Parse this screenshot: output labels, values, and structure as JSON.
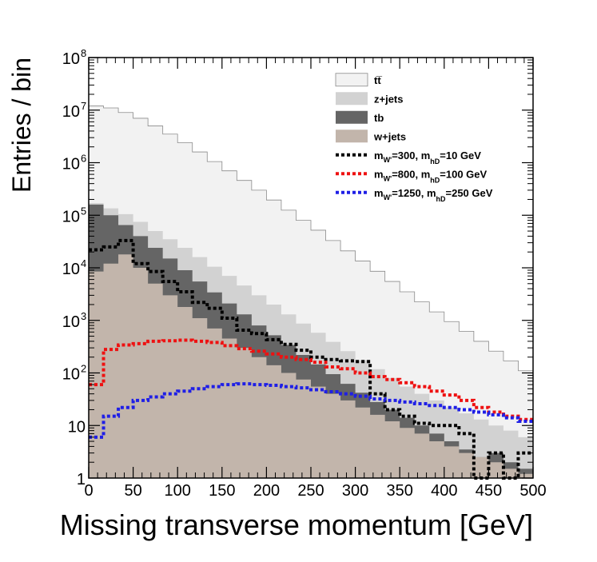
{
  "chart_data": {
    "type": "histogram",
    "title": "",
    "xlabel": "Missing transverse momentum [GeV]",
    "ylabel": "Entries / bin",
    "xlim": [
      0,
      500
    ],
    "ylim": [
      1,
      100000000
    ],
    "log_y": true,
    "grid": false,
    "legend_position": "top-right",
    "bin_width": 16.6667,
    "x_ticks": [
      "0",
      "50",
      "100",
      "150",
      "200",
      "250",
      "300",
      "350",
      "400",
      "450",
      "500"
    ],
    "y_ticks": [
      {
        "base": "1",
        "exp": ""
      },
      {
        "base": "10",
        "exp": ""
      },
      {
        "base": "10",
        "exp": "2"
      },
      {
        "base": "10",
        "exp": "3"
      },
      {
        "base": "10",
        "exp": "4"
      },
      {
        "base": "10",
        "exp": "5"
      },
      {
        "base": "10",
        "exp": "6"
      },
      {
        "base": "10",
        "exp": "7"
      },
      {
        "base": "10",
        "exp": "8"
      }
    ],
    "stacked_backgrounds": [
      {
        "name": "w+jets",
        "color": "#c2b5ab",
        "cumulative_values": [
          8500,
          12000,
          18000,
          10000,
          5000,
          3000,
          1800,
          1100,
          700,
          450,
          300,
          200,
          140,
          100,
          75,
          55,
          40,
          30,
          22,
          16,
          12,
          9,
          7,
          5,
          4,
          3,
          2.5,
          2,
          1.5,
          1.2
        ]
      },
      {
        "name": "tb",
        "color": "#656565",
        "cumulative_values": [
          160000,
          100000,
          65000,
          40000,
          24000,
          15000,
          9000,
          5500,
          3400,
          2100,
          1300,
          800,
          520,
          340,
          220,
          145,
          95,
          62,
          42,
          28,
          20,
          14,
          10,
          7,
          5,
          3.5,
          2.5,
          3,
          2,
          1.5
        ]
      },
      {
        "name": "z+jets",
        "color": "#d2d2d2",
        "cumulative_values": [
          170000,
          135000,
          105000,
          75000,
          50000,
          35000,
          24000,
          16000,
          10500,
          7000,
          4600,
          3000,
          2000,
          1300,
          870,
          580,
          390,
          260,
          175,
          118,
          80,
          55,
          40,
          30,
          22,
          17,
          13,
          10,
          8,
          6
        ]
      },
      {
        "name": "tt̅",
        "color": "#f2f2f2",
        "cumulative_values": [
          12000000,
          11000000,
          9000000,
          7000000,
          5000000,
          3500000,
          2400000,
          1600000,
          1050000,
          700000,
          460000,
          300000,
          195000,
          125000,
          80000,
          52000,
          33000,
          21000,
          13500,
          8600,
          5500,
          3500,
          2250,
          1450,
          950,
          620,
          400,
          260,
          170,
          110
        ]
      }
    ],
    "signals": [
      {
        "label_parts": [
          "m",
          "W'",
          "=300, m",
          "hD",
          "=10 GeV"
        ],
        "color": "#000000",
        "values": [
          22000,
          25000,
          33000,
          12000,
          8500,
          5500,
          3500,
          2200,
          1700,
          1100,
          650,
          560,
          430,
          350,
          270,
          200,
          180,
          170,
          165,
          40,
          20,
          15,
          11,
          10,
          10,
          7,
          1,
          3,
          1,
          3
        ]
      },
      {
        "label_parts": [
          "m",
          "W'",
          "=800, m",
          "hD",
          "=100 GeV"
        ],
        "color": "#ee1111",
        "values": [
          60,
          280,
          340,
          360,
          400,
          410,
          420,
          400,
          380,
          330,
          290,
          260,
          230,
          200,
          180,
          160,
          130,
          120,
          100,
          85,
          75,
          65,
          55,
          45,
          38,
          30,
          22,
          18,
          15,
          13
        ]
      },
      {
        "label_parts": [
          "m",
          "W'",
          "=1250, m",
          "hD",
          "=250 GeV"
        ],
        "color": "#1f1fe6",
        "values": [
          6,
          15,
          22,
          30,
          35,
          40,
          45,
          50,
          55,
          60,
          62,
          60,
          58,
          55,
          52,
          48,
          44,
          40,
          36,
          32,
          30,
          28,
          26,
          24,
          22,
          20,
          18,
          16,
          14,
          12
        ]
      }
    ]
  }
}
